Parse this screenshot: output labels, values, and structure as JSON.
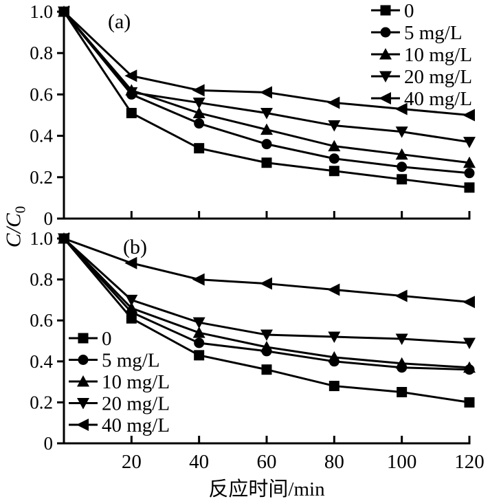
{
  "figure": {
    "xlabel": "反应时间/min",
    "ylabel_main": "C/C",
    "ylabel_sub": "0",
    "background_color": "#ffffff",
    "line_color": "#000000"
  },
  "chart_data": [
    {
      "type": "line",
      "panel_label": "(a)",
      "xlabel": "反应时间/min",
      "ylabel": "C/C0",
      "x": [
        0,
        20,
        40,
        60,
        80,
        100,
        120
      ],
      "xlim": [
        0,
        120
      ],
      "ylim": [
        0,
        1.0
      ],
      "xticks": [
        "20",
        "40",
        "60",
        "80",
        "100",
        "120"
      ],
      "yticks": [
        "1.0",
        "0.8",
        "0.6",
        "0.4",
        "0.2",
        "0"
      ],
      "grid": false,
      "legend_position": "top-right",
      "series": [
        {
          "name": "0",
          "marker": "square",
          "values": [
            1.0,
            0.51,
            0.34,
            0.27,
            0.23,
            0.19,
            0.15
          ]
        },
        {
          "name": "5 mg/L",
          "marker": "circle",
          "values": [
            1.0,
            0.6,
            0.46,
            0.36,
            0.29,
            0.25,
            0.22
          ]
        },
        {
          "name": "10 mg/L",
          "marker": "triangle-up",
          "values": [
            1.0,
            0.62,
            0.51,
            0.43,
            0.35,
            0.31,
            0.27
          ]
        },
        {
          "name": "20 mg/L",
          "marker": "triangle-down",
          "values": [
            1.0,
            0.61,
            0.56,
            0.51,
            0.45,
            0.42,
            0.37
          ]
        },
        {
          "name": "40 mg/L",
          "marker": "triangle-left",
          "values": [
            1.0,
            0.69,
            0.62,
            0.61,
            0.56,
            0.53,
            0.5
          ]
        }
      ]
    },
    {
      "type": "line",
      "panel_label": "(b)",
      "xlabel": "反应时间/min",
      "ylabel": "C/C0",
      "x": [
        0,
        20,
        40,
        60,
        80,
        100,
        120
      ],
      "xlim": [
        0,
        120
      ],
      "ylim": [
        0,
        1.0
      ],
      "xticks": [
        "20",
        "40",
        "60",
        "80",
        "100",
        "120"
      ],
      "yticks": [
        "1.0",
        "0.8",
        "0.6",
        "0.4",
        "0.2",
        "0"
      ],
      "grid": false,
      "legend_position": "bottom-left",
      "series": [
        {
          "name": "0",
          "marker": "square",
          "values": [
            1.0,
            0.61,
            0.43,
            0.36,
            0.28,
            0.25,
            0.2
          ]
        },
        {
          "name": "5 mg/L",
          "marker": "circle",
          "values": [
            1.0,
            0.64,
            0.49,
            0.45,
            0.4,
            0.37,
            0.36
          ]
        },
        {
          "name": "10 mg/L",
          "marker": "triangle-up",
          "values": [
            1.0,
            0.66,
            0.54,
            0.47,
            0.42,
            0.39,
            0.37
          ]
        },
        {
          "name": "20 mg/L",
          "marker": "triangle-down",
          "values": [
            1.0,
            0.7,
            0.59,
            0.53,
            0.52,
            0.51,
            0.49
          ]
        },
        {
          "name": "40 mg/L",
          "marker": "triangle-left",
          "values": [
            1.0,
            0.88,
            0.8,
            0.78,
            0.75,
            0.72,
            0.69
          ]
        }
      ]
    }
  ]
}
